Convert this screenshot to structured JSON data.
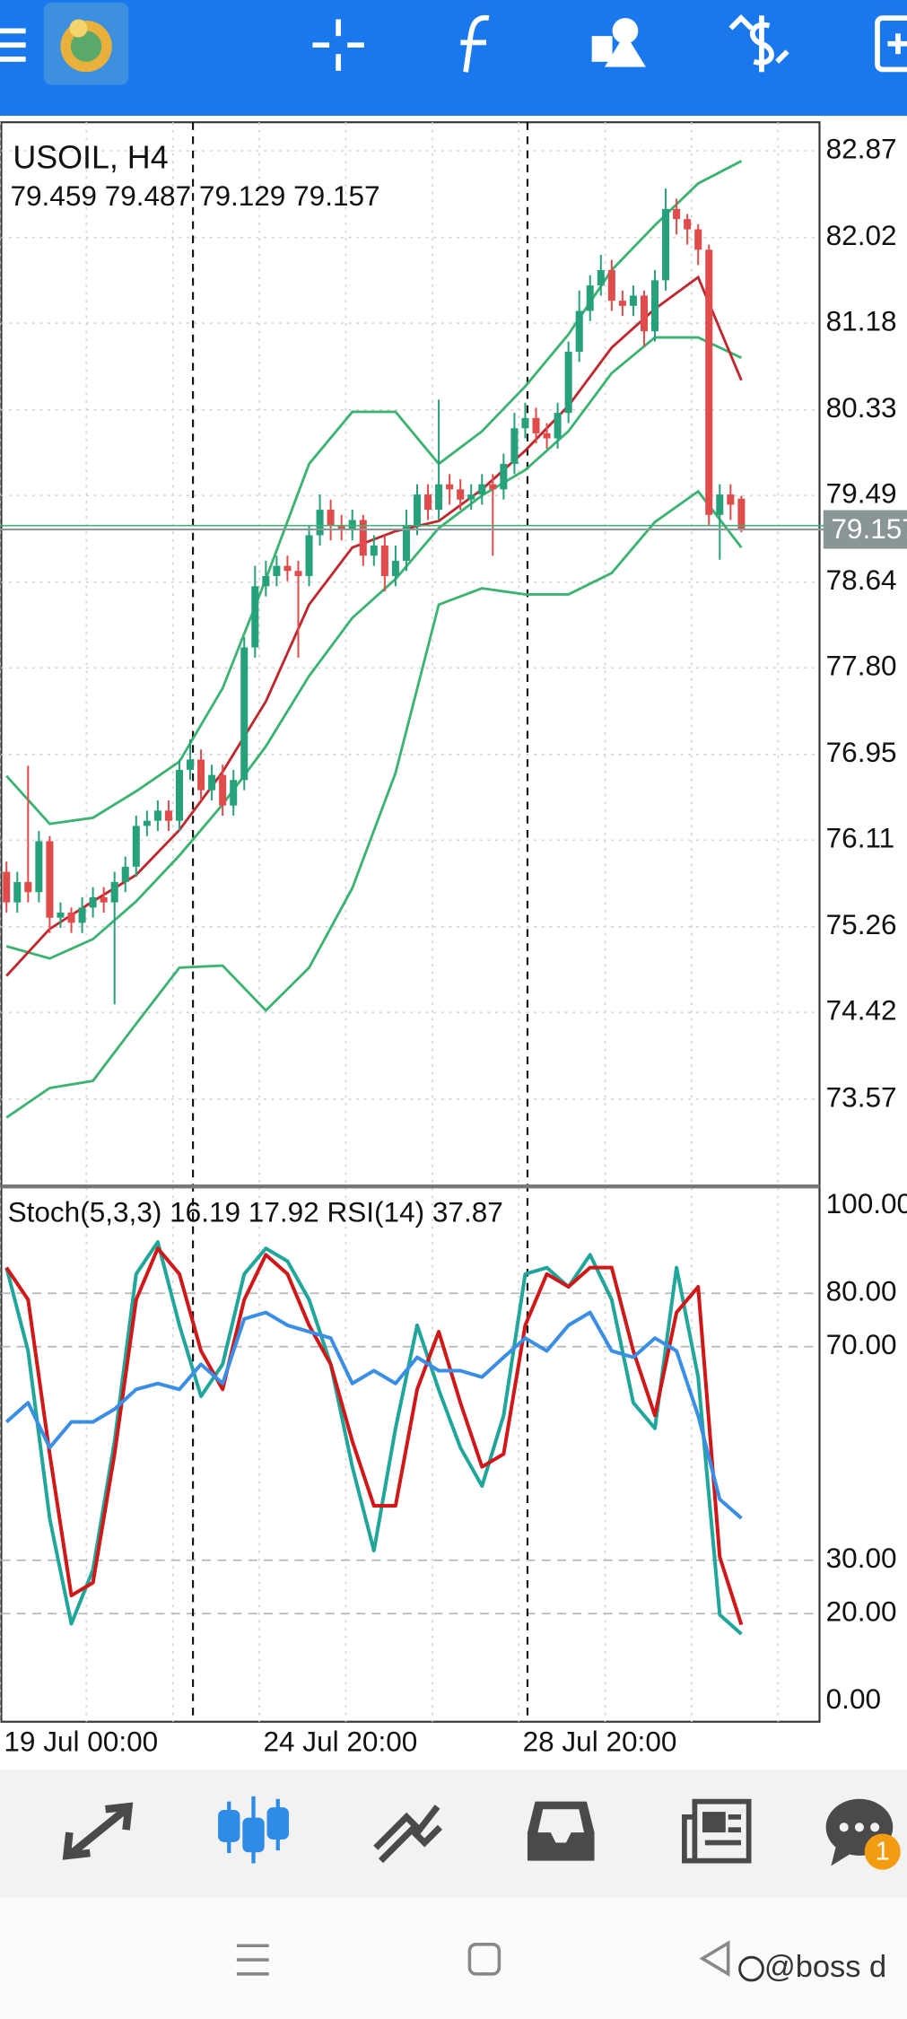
{
  "chart_data": [
    {
      "type": "candlestick",
      "title": "USOIL, H4",
      "categories": [
        "19 Jul 00:00",
        null,
        null,
        null,
        null,
        null,
        null,
        null,
        null,
        null,
        null,
        null,
        null,
        null,
        null,
        null,
        null,
        null,
        null,
        null,
        null,
        null,
        null,
        null,
        "24 Jul 20:00",
        null,
        null,
        null,
        null,
        null,
        null,
        null,
        null,
        null,
        null,
        null,
        null,
        null,
        null,
        null,
        null,
        null,
        null,
        null,
        null,
        null,
        null,
        null,
        "28 Jul 20:00",
        null,
        null,
        null,
        null,
        null,
        null,
        null,
        null,
        null,
        null,
        null,
        null,
        null,
        null,
        null,
        null,
        null,
        null,
        null,
        null
      ],
      "open": [
        75.8,
        75.5,
        75.7,
        75.6,
        76.1,
        75.35,
        75.4,
        75.3,
        75.45,
        75.55,
        75.5,
        75.7,
        75.85,
        76.25,
        76.3,
        76.4,
        76.3,
        76.8,
        76.9,
        76.6,
        76.75,
        76.45,
        76.7,
        78.0,
        78.6,
        78.7,
        78.8,
        78.75,
        78.7,
        79.1,
        79.35,
        79.2,
        79.15,
        79.25,
        78.9,
        79.0,
        78.7,
        78.85,
        79.2,
        79.5,
        79.35,
        79.6,
        79.55,
        79.45,
        79.5,
        79.6,
        79.55,
        79.8,
        80.15,
        80.25,
        80.1,
        80.05,
        80.3,
        80.9,
        81.3,
        81.55,
        81.7,
        81.4,
        81.35,
        81.45,
        81.1,
        81.6,
        82.3,
        82.2,
        82.1,
        81.9,
        79.3,
        79.5,
        79.459
      ],
      "high": [
        75.9,
        75.8,
        76.84,
        76.2,
        76.15,
        75.5,
        75.45,
        75.55,
        75.65,
        75.65,
        75.8,
        75.95,
        76.35,
        76.4,
        76.5,
        76.5,
        76.9,
        77.1,
        77.0,
        76.85,
        76.85,
        76.8,
        78.1,
        78.8,
        78.85,
        78.9,
        78.9,
        78.85,
        79.2,
        79.5,
        79.45,
        79.3,
        79.35,
        79.3,
        79.1,
        79.1,
        79.0,
        79.35,
        79.6,
        79.6,
        80.43,
        79.7,
        79.65,
        79.6,
        79.7,
        79.7,
        79.9,
        80.3,
        80.4,
        80.35,
        80.2,
        80.4,
        81.0,
        81.5,
        81.65,
        81.85,
        81.8,
        81.5,
        81.55,
        81.5,
        81.7,
        82.5,
        82.4,
        82.25,
        82.15,
        81.95,
        79.6,
        79.6,
        79.487
      ],
      "low": [
        75.4,
        75.4,
        75.5,
        75.5,
        75.2,
        75.25,
        75.2,
        75.2,
        75.35,
        75.4,
        74.5,
        75.6,
        75.75,
        76.15,
        76.2,
        76.2,
        76.2,
        76.7,
        76.5,
        76.5,
        76.35,
        76.35,
        76.6,
        77.9,
        78.5,
        78.6,
        78.65,
        77.9,
        78.6,
        79.0,
        79.05,
        79.05,
        79.05,
        78.8,
        78.8,
        78.55,
        78.6,
        78.75,
        79.1,
        79.25,
        79.25,
        79.4,
        79.35,
        79.35,
        79.4,
        78.9,
        79.45,
        79.7,
        80.05,
        80.0,
        79.95,
        79.95,
        80.2,
        80.8,
        81.2,
        81.45,
        81.3,
        81.25,
        81.25,
        80.95,
        81.0,
        81.5,
        82.05,
        81.95,
        81.75,
        79.2,
        78.86,
        79.25,
        79.129
      ],
      "close": [
        75.5,
        75.7,
        75.6,
        76.1,
        75.35,
        75.4,
        75.3,
        75.45,
        75.55,
        75.5,
        75.7,
        75.85,
        76.25,
        76.3,
        76.4,
        76.3,
        76.8,
        76.9,
        76.6,
        76.75,
        76.45,
        76.7,
        78.0,
        78.6,
        78.7,
        78.8,
        78.75,
        78.7,
        79.1,
        79.35,
        79.2,
        79.15,
        79.25,
        78.9,
        79.0,
        78.7,
        78.85,
        79.2,
        79.5,
        79.35,
        79.6,
        79.55,
        79.45,
        79.5,
        79.6,
        79.55,
        79.8,
        80.15,
        80.25,
        80.1,
        80.05,
        80.3,
        80.9,
        81.3,
        81.55,
        81.7,
        81.4,
        81.35,
        81.45,
        81.1,
        81.6,
        82.3,
        82.2,
        82.1,
        81.9,
        79.3,
        79.5,
        79.4,
        79.157
      ],
      "up_color": "#26a17b",
      "down_color": "#e04b4b",
      "overlays": [
        {
          "color": "#3cb371",
          "x": [
            0,
            4,
            8,
            12,
            16,
            20,
            24,
            28,
            32,
            36,
            40,
            44,
            48,
            52,
            56,
            60,
            64,
            68
          ],
          "values": [
            76.74,
            76.27,
            76.33,
            76.59,
            76.88,
            77.6,
            78.67,
            79.8,
            80.31,
            80.31,
            79.8,
            80.12,
            80.56,
            81.07,
            81.7,
            82.14,
            82.55,
            82.77
          ]
        },
        {
          "color": "#3cb371",
          "x": [
            0,
            4,
            8,
            12,
            16,
            20,
            24,
            28,
            32,
            36,
            40,
            44,
            48,
            52,
            56,
            60,
            64,
            68
          ],
          "values": [
            75.07,
            74.95,
            75.14,
            75.51,
            75.96,
            76.46,
            77.03,
            77.72,
            78.29,
            78.67,
            79.17,
            79.49,
            79.74,
            80.12,
            80.69,
            81.04,
            81.04,
            80.84
          ]
        },
        {
          "color": "#3cb371",
          "x": [
            0,
            4,
            8,
            12,
            16,
            20,
            24,
            28,
            32,
            36,
            40,
            44,
            48,
            52,
            56,
            60,
            64,
            68
          ],
          "values": [
            73.39,
            73.68,
            73.75,
            74.31,
            74.86,
            74.88,
            74.44,
            74.86,
            75.64,
            76.77,
            78.42,
            78.58,
            78.52,
            78.52,
            78.73,
            79.23,
            79.53,
            78.98
          ]
        },
        {
          "color": "#c0282d",
          "x": [
            0,
            4,
            8,
            12,
            16,
            20,
            24,
            28,
            32,
            36,
            40,
            44,
            48,
            52,
            56,
            60,
            64,
            68
          ],
          "values": [
            74.78,
            75.24,
            75.51,
            75.77,
            76.21,
            76.78,
            77.47,
            78.42,
            78.98,
            79.14,
            79.24,
            79.55,
            79.93,
            80.37,
            80.94,
            81.32,
            81.63,
            80.62
          ]
        }
      ],
      "xlim": [
        -0.6,
        75.23
      ],
      "ylim": [
        72.74,
        83.15
      ],
      "yticks": [
        82.87,
        82.02,
        81.18,
        80.33,
        79.49,
        78.64,
        {
          "value": 77.8,
          "label": "77.80"
        },
        76.95,
        76.11,
        75.26,
        74.42,
        73.57
      ],
      "grid": true
    },
    {
      "type": "line",
      "x": [
        0,
        2,
        4,
        6,
        8,
        10,
        12,
        14,
        16,
        18,
        20,
        22,
        24,
        26,
        28,
        30,
        32,
        34,
        36,
        38,
        40,
        42,
        44,
        46,
        48,
        50,
        52,
        54,
        56,
        58,
        60,
        62,
        64,
        66,
        68
      ],
      "series": [
        {
          "name": "Stoch(5,3,3)",
          "color": "#20a69a",
          "values": [
            84.8,
            69.2,
            37.8,
            18.1,
            28.2,
            52.3,
            83.6,
            89.6,
            74.0,
            60.7,
            66.7,
            83.6,
            88.4,
            86.0,
            78.8,
            66.7,
            47.5,
            31.8,
            54.7,
            74.0,
            61.9,
            51.1,
            43.9,
            57.1,
            83.6,
            84.8,
            81.2,
            87.2,
            78.8,
            59.5,
            54.7,
            84.8,
            64.3,
            19.8,
            16.19
          ]
        },
        {
          "color": "#d01818",
          "values": [
            84.8,
            78.8,
            49.9,
            23.4,
            25.8,
            49.9,
            78.8,
            88.4,
            83.6,
            69.2,
            62.0,
            78.8,
            87.2,
            83.6,
            74.0,
            66.7,
            52.3,
            40.2,
            40.2,
            62.0,
            72.8,
            59.5,
            47.5,
            49.9,
            74.0,
            83.6,
            81.2,
            84.8,
            84.8,
            69.2,
            57.1,
            76.4,
            81.2,
            30.6,
            17.92
          ]
        },
        {
          "name": "RSI(14)",
          "color": "#3a8ee6",
          "values": [
            55.9,
            59.5,
            51.1,
            55.9,
            55.9,
            58.3,
            62.0,
            63.1,
            62.0,
            66.7,
            63.1,
            75.2,
            76.4,
            74.0,
            72.8,
            71.6,
            63.1,
            65.5,
            63.1,
            68.0,
            65.5,
            65.5,
            64.3,
            68.0,
            71.6,
            69.2,
            74.0,
            76.4,
            69.2,
            68.0,
            71.6,
            69.2,
            57.1,
            41.4,
            37.87
          ]
        }
      ],
      "xlim": [
        -0.6,
        75.23
      ],
      "ylim": [
        0,
        100
      ],
      "yticks": [
        {
          "value": 100,
          "label": "100.00"
        },
        {
          "value": 80,
          "label": "80.00"
        },
        {
          "value": 70,
          "label": "70.00"
        },
        {
          "value": 30,
          "label": "30.00"
        },
        {
          "value": 20,
          "label": "20.00"
        },
        {
          "value": 0,
          "label": "0.00"
        }
      ],
      "grid": true
    }
  ],
  "bottom_nav": {
    "chat_badge": 1
  },
  "watermark": "@boss d"
}
